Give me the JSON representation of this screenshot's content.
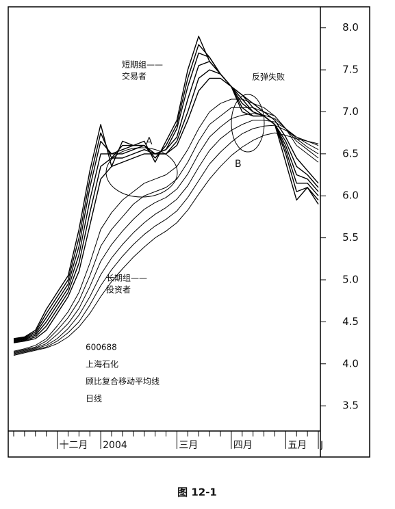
{
  "chart_data": {
    "type": "line",
    "annotations": [
      "短期组——",
      "交易者",
      "反弹失败",
      "A",
      "B",
      "长期组——",
      "投资者",
      "600688",
      "上海石化",
      "顾比复合移动平均线",
      "日线"
    ],
    "categories": [
      null,
      null,
      null,
      null,
      "十二月",
      null,
      null,
      null,
      "2004",
      null,
      null,
      null,
      null,
      null,
      null,
      "三月",
      null,
      null,
      null,
      null,
      "四月",
      null,
      null,
      null,
      null,
      "五月",
      null,
      null,
      "J"
    ],
    "series": [
      {
        "color": "#000000",
        "values": [
          4.3,
          4.32,
          4.4,
          4.65,
          4.85,
          5.05,
          5.6,
          6.3,
          6.85,
          6.35,
          6.65,
          6.6,
          6.65,
          6.4,
          6.65,
          6.9,
          7.5,
          7.9,
          7.6,
          7.45,
          7.3,
          7.0,
          6.95,
          6.95,
          6.85,
          6.4,
          5.95,
          6.1,
          5.9
        ]
      },
      {
        "color": "#000000",
        "values": [
          4.29,
          4.31,
          4.38,
          4.6,
          4.8,
          5.0,
          5.5,
          6.2,
          6.75,
          6.45,
          6.6,
          6.6,
          6.6,
          6.45,
          6.6,
          6.85,
          7.4,
          7.8,
          7.65,
          7.45,
          7.3,
          7.05,
          6.95,
          6.95,
          6.85,
          6.5,
          6.05,
          6.1,
          5.95
        ]
      },
      {
        "color": "#000000",
        "values": [
          4.28,
          4.3,
          4.36,
          4.55,
          4.75,
          4.95,
          5.4,
          6.1,
          6.65,
          6.5,
          6.55,
          6.6,
          6.6,
          6.5,
          6.55,
          6.8,
          7.3,
          7.7,
          7.65,
          7.45,
          7.3,
          7.1,
          7.0,
          6.95,
          6.85,
          6.55,
          6.15,
          6.15,
          6.0
        ]
      },
      {
        "color": "#000000",
        "values": [
          4.27,
          4.29,
          4.34,
          4.5,
          4.7,
          4.9,
          5.3,
          5.95,
          6.5,
          6.5,
          6.5,
          6.55,
          6.6,
          6.5,
          6.55,
          6.7,
          7.15,
          7.55,
          7.6,
          7.45,
          7.3,
          7.15,
          7.0,
          6.95,
          6.85,
          6.6,
          6.25,
          6.2,
          6.05
        ]
      },
      {
        "color": "#000000",
        "values": [
          4.26,
          4.28,
          4.32,
          4.45,
          4.65,
          4.85,
          5.2,
          5.8,
          6.35,
          6.45,
          6.45,
          6.5,
          6.55,
          6.5,
          6.5,
          6.65,
          7.0,
          7.4,
          7.5,
          7.45,
          7.3,
          7.2,
          7.05,
          6.95,
          6.85,
          6.65,
          6.35,
          6.25,
          6.1
        ]
      },
      {
        "color": "#000000",
        "values": [
          4.25,
          4.27,
          4.3,
          4.4,
          4.6,
          4.8,
          5.1,
          5.65,
          6.2,
          6.35,
          6.4,
          6.45,
          6.5,
          6.5,
          6.5,
          6.6,
          6.9,
          7.25,
          7.4,
          7.4,
          7.3,
          7.2,
          7.1,
          7.0,
          6.9,
          6.7,
          6.45,
          6.3,
          6.15
        ]
      },
      {
        "color": "#000000",
        "values": [
          4.15,
          4.18,
          4.22,
          4.3,
          4.45,
          4.62,
          4.85,
          5.2,
          5.6,
          5.8,
          5.95,
          6.05,
          6.15,
          6.2,
          6.25,
          6.35,
          6.55,
          6.8,
          7.0,
          7.1,
          7.15,
          7.15,
          7.1,
          7.05,
          6.95,
          6.8,
          6.6,
          6.5,
          6.4
        ]
      },
      {
        "color": "#000000",
        "values": [
          4.14,
          4.17,
          4.2,
          4.27,
          4.4,
          4.55,
          4.75,
          5.05,
          5.4,
          5.6,
          5.75,
          5.9,
          6.0,
          6.05,
          6.1,
          6.2,
          6.4,
          6.65,
          6.85,
          6.95,
          7.05,
          7.05,
          7.05,
          7.0,
          6.95,
          6.8,
          6.65,
          6.55,
          6.45
        ]
      },
      {
        "color": "#000000",
        "values": [
          4.13,
          4.16,
          4.19,
          4.24,
          4.35,
          4.48,
          4.66,
          4.92,
          5.22,
          5.42,
          5.58,
          5.72,
          5.84,
          5.92,
          5.98,
          6.08,
          6.26,
          6.5,
          6.7,
          6.82,
          6.92,
          6.96,
          6.98,
          6.96,
          6.92,
          6.8,
          6.68,
          6.58,
          6.5
        ]
      },
      {
        "color": "#000000",
        "values": [
          4.12,
          4.15,
          4.18,
          4.22,
          4.3,
          4.42,
          4.58,
          4.8,
          5.06,
          5.26,
          5.42,
          5.56,
          5.68,
          5.78,
          5.86,
          5.96,
          6.12,
          6.34,
          6.54,
          6.68,
          6.78,
          6.85,
          6.9,
          6.9,
          6.88,
          6.8,
          6.7,
          6.62,
          6.55
        ]
      },
      {
        "color": "#000000",
        "values": [
          4.11,
          4.14,
          4.17,
          4.2,
          4.27,
          4.37,
          4.5,
          4.7,
          4.93,
          5.12,
          5.28,
          5.42,
          5.54,
          5.64,
          5.72,
          5.82,
          5.98,
          6.18,
          6.38,
          6.52,
          6.64,
          6.74,
          6.8,
          6.83,
          6.84,
          6.78,
          6.7,
          6.65,
          6.6
        ]
      },
      {
        "color": "#000000",
        "values": [
          4.1,
          4.13,
          4.16,
          4.19,
          4.24,
          4.32,
          4.44,
          4.6,
          4.8,
          4.98,
          5.13,
          5.27,
          5.39,
          5.5,
          5.58,
          5.68,
          5.83,
          6.02,
          6.2,
          6.35,
          6.48,
          6.58,
          6.66,
          6.72,
          6.75,
          6.72,
          6.68,
          6.65,
          6.62
        ]
      }
    ],
    "ylim": [
      3.2,
      8.25
    ],
    "yticks": [
      3.5,
      {
        "value": 4,
        "label": "4.0"
      },
      4.5,
      {
        "value": 5,
        "label": "5.0"
      },
      5.5,
      {
        "value": 6,
        "label": "6.0"
      },
      6.5,
      {
        "value": 7,
        "label": "7.0"
      },
      7.5,
      {
        "value": 8,
        "label": "8.0"
      }
    ]
  },
  "caption": "图 12-1"
}
